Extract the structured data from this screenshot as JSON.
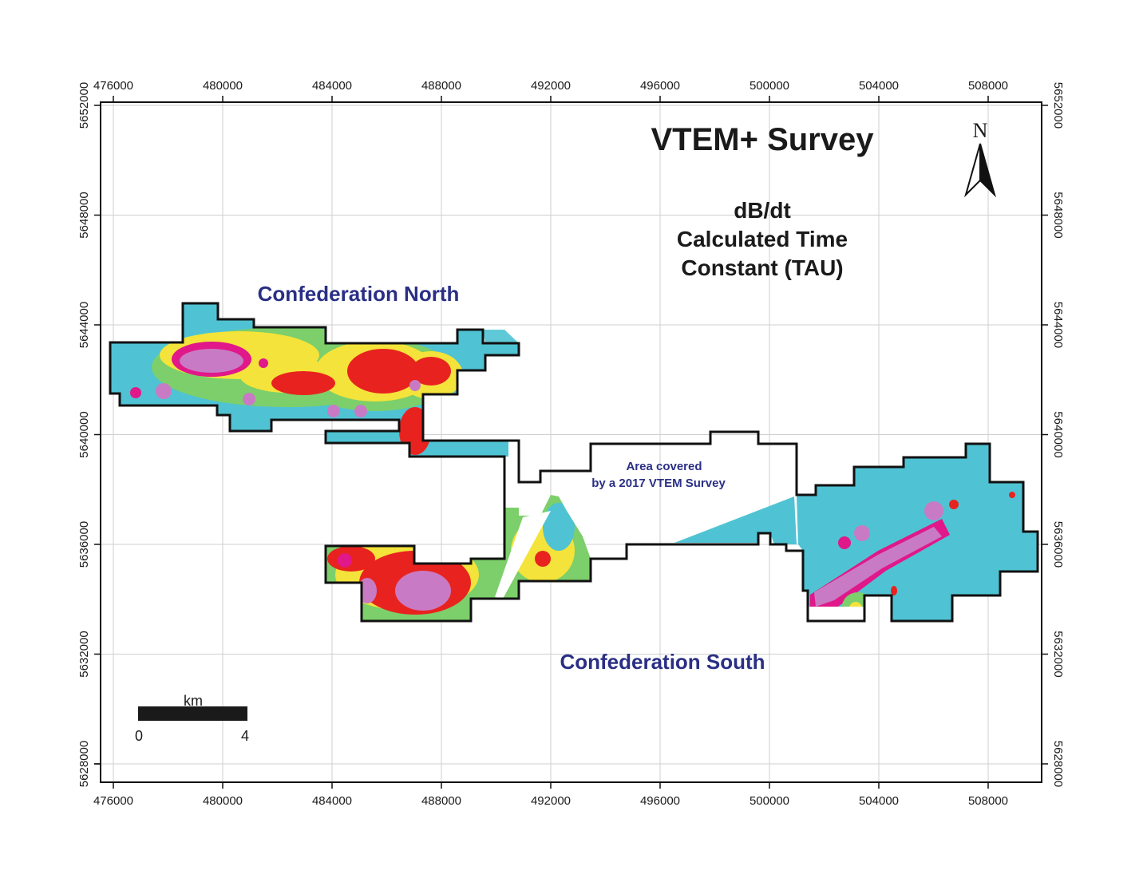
{
  "map": {
    "title": "VTEM+ Survey",
    "subtitle_lines": [
      "dB/dt",
      "Calculated Time",
      "Constant (TAU)"
    ],
    "zones": {
      "north": "Confederation North",
      "south": "Confederation South"
    },
    "area_note_lines": [
      "Area covered",
      "by a 2017 VTEM Survey"
    ],
    "north_arrow": {
      "label": "N",
      "icon": "north-arrow-icon"
    },
    "scale_bar": {
      "unit": "km",
      "start": "0",
      "end": "4"
    },
    "x_ticks": [
      "476000",
      "480000",
      "484000",
      "488000",
      "492000",
      "496000",
      "500000",
      "504000",
      "508000"
    ],
    "y_ticks": [
      "5652000",
      "5648000",
      "5644000",
      "5640000",
      "5636000",
      "5632000",
      "5628000"
    ],
    "colors": {
      "low_tau": "#4fc3d3",
      "green": "#7ccf6a",
      "yellow": "#f4e33a",
      "red": "#e8231f",
      "magenta": "#e0188a",
      "violet": "#c87bc4",
      "outline": "#111111",
      "label_blue": "#2a2f85"
    }
  }
}
